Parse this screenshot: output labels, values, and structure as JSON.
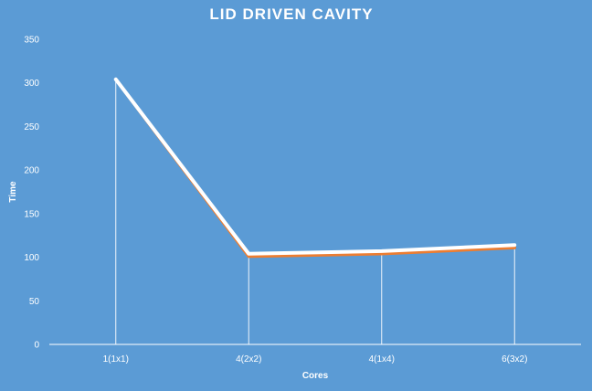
{
  "chart_data": {
    "type": "line",
    "title": "LID DRIVEN CAVITY",
    "xlabel": "Cores",
    "ylabel": "Time",
    "categories": [
      "1(1x1)",
      "4(2x2)",
      "4(1x4)",
      "6(3x2)"
    ],
    "ylim": [
      0,
      350
    ],
    "yticks": [
      0,
      50,
      100,
      150,
      200,
      250,
      300,
      350
    ],
    "grid": false,
    "drop_lines": true,
    "series": [
      {
        "values": [
          304,
          104,
          107,
          114
        ],
        "color": "#ffffff"
      },
      {
        "values": [
          304,
          101,
          104,
          111
        ],
        "color": "#ed7d31"
      }
    ]
  }
}
